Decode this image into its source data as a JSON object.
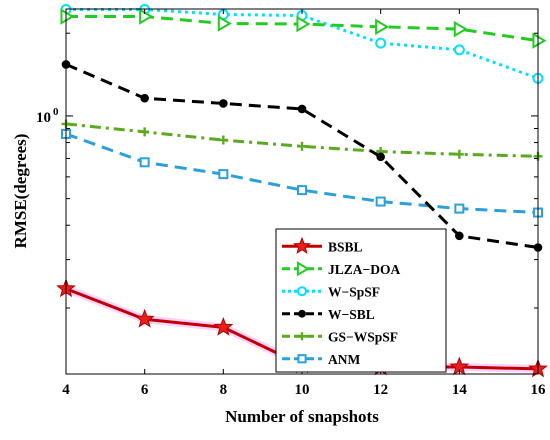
{
  "chart_data": {
    "type": "line",
    "title": "",
    "xlabel": "Number of snapshots",
    "ylabel": "RMSE(degrees)",
    "x": [
      4,
      6,
      8,
      10,
      12,
      14,
      16
    ],
    "xticks": [
      "4",
      "6",
      "8",
      "10",
      "12",
      "14",
      "16"
    ],
    "xlim": [
      4,
      16
    ],
    "yscale": "log",
    "ylim": [
      0.115,
      2.45
    ],
    "ytick_value": 1.0,
    "ytick_label": "10",
    "ytick_exponent": "0",
    "grid": false,
    "legend_position": "lower-right",
    "series": [
      {
        "name": "BSBL",
        "color": "#c00000",
        "marker": "star",
        "dash": "solid",
        "values": [
          0.235,
          0.182,
          0.17,
          0.124,
          0.122,
          0.122,
          0.12
        ]
      },
      {
        "name": "JLZA−DOA",
        "color": "#22cc22",
        "marker": "triangle-right",
        "dash": "dashed",
        "values": [
          2.3,
          2.3,
          2.17,
          2.16,
          2.11,
          2.07,
          1.88
        ]
      },
      {
        "name": "W−SpSF",
        "color": "#00e0ff",
        "marker": "circle-open",
        "dash": "dotted",
        "values": [
          2.44,
          2.44,
          2.34,
          2.32,
          1.84,
          1.74,
          1.37
        ]
      },
      {
        "name": "W−SBL",
        "color": "#000000",
        "marker": "dot",
        "dash": "dashed",
        "values": [
          1.54,
          1.16,
          1.11,
          1.06,
          0.71,
          0.366,
          0.332
        ]
      },
      {
        "name": "GS−WSpSF",
        "color": "#5aaa1e",
        "marker": "plus",
        "dash": "dashdot",
        "values": [
          0.935,
          0.875,
          0.817,
          0.775,
          0.742,
          0.725,
          0.713
        ]
      },
      {
        "name": "ANM",
        "color": "#2aa0dd",
        "marker": "square-open",
        "dash": "dashed",
        "values": [
          0.86,
          0.678,
          0.614,
          0.537,
          0.488,
          0.46,
          0.445
        ]
      }
    ]
  }
}
